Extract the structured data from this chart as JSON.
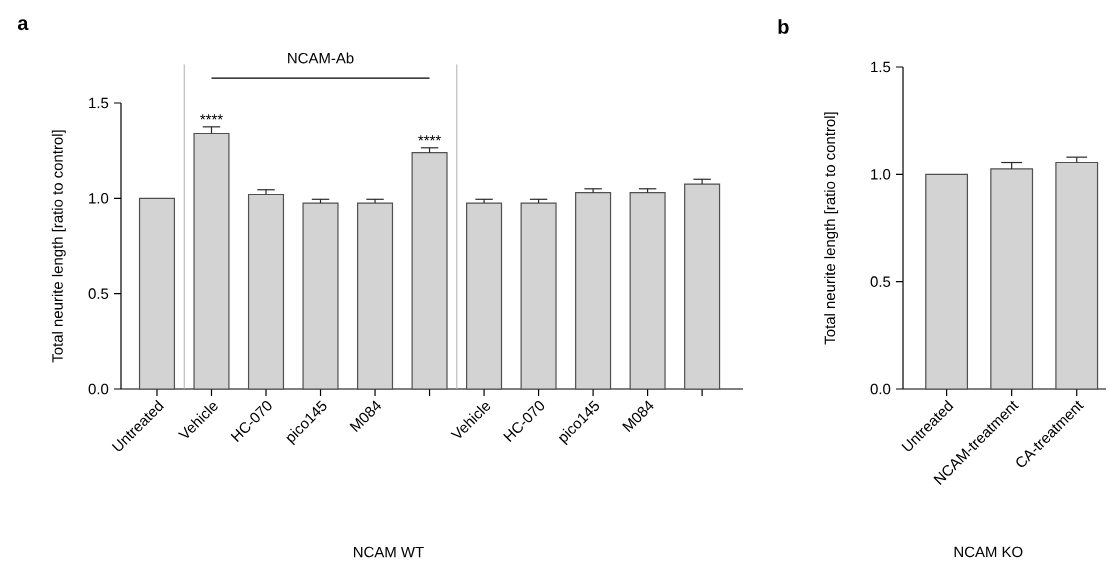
{
  "chart_data": [
    {
      "type": "bar",
      "title": "a",
      "xlabel": "NCAM WT",
      "ylabel": "Total neurite length [ratio to control]",
      "categories": [
        "Untreated",
        "Vehicle",
        "HC-070",
        "pico145",
        "M084",
        null,
        "Vehicle",
        "HC-070",
        "pico145",
        "M084",
        null
      ],
      "values": [
        1.0,
        1.34,
        1.02,
        0.975,
        0.975,
        1.24,
        0.975,
        0.975,
        1.03,
        1.03,
        1.075
      ],
      "errors": [
        null,
        [
          1.34,
          1.375
        ],
        [
          1.02,
          1.045
        ],
        [
          0.975,
          0.995
        ],
        [
          0.975,
          0.995
        ],
        [
          1.24,
          1.265
        ],
        [
          0.975,
          0.995
        ],
        [
          0.975,
          0.995
        ],
        [
          1.03,
          1.05
        ],
        [
          1.03,
          1.05
        ],
        [
          1.075,
          1.1
        ]
      ],
      "value_labels": [
        null,
        "****",
        null,
        null,
        null,
        "****",
        null,
        null,
        null,
        null,
        null
      ],
      "color": "#d3d3d3",
      "ylim": [
        0,
        1.5
      ],
      "yticks": [
        {
          "value": 0,
          "label": "0.0"
        },
        {
          "value": 0.5,
          "label": "0.5"
        },
        {
          "value": 1,
          "label": "1.0"
        },
        {
          "value": 1.5,
          "label": "1.5"
        }
      ],
      "annotations": [
        "NCAM-Ab"
      ]
    },
    {
      "type": "bar",
      "title": "b",
      "xlabel": "NCAM KO",
      "ylabel": "Total neurite length [ratio to control]",
      "categories": [
        "Untreated",
        "NCAM-treatment",
        "CA-treatment"
      ],
      "values": [
        1.0,
        1.025,
        1.055
      ],
      "errors": [
        null,
        [
          1.025,
          1.055
        ],
        [
          1.055,
          1.08
        ]
      ],
      "color": "#d3d3d3",
      "ylim": [
        0,
        1.5
      ],
      "yticks": [
        {
          "value": 0,
          "label": "0.0"
        },
        {
          "value": 0.5,
          "label": "0.5"
        },
        {
          "value": 1,
          "label": "1.0"
        },
        {
          "value": 1.5,
          "label": "1.5"
        }
      ]
    }
  ]
}
